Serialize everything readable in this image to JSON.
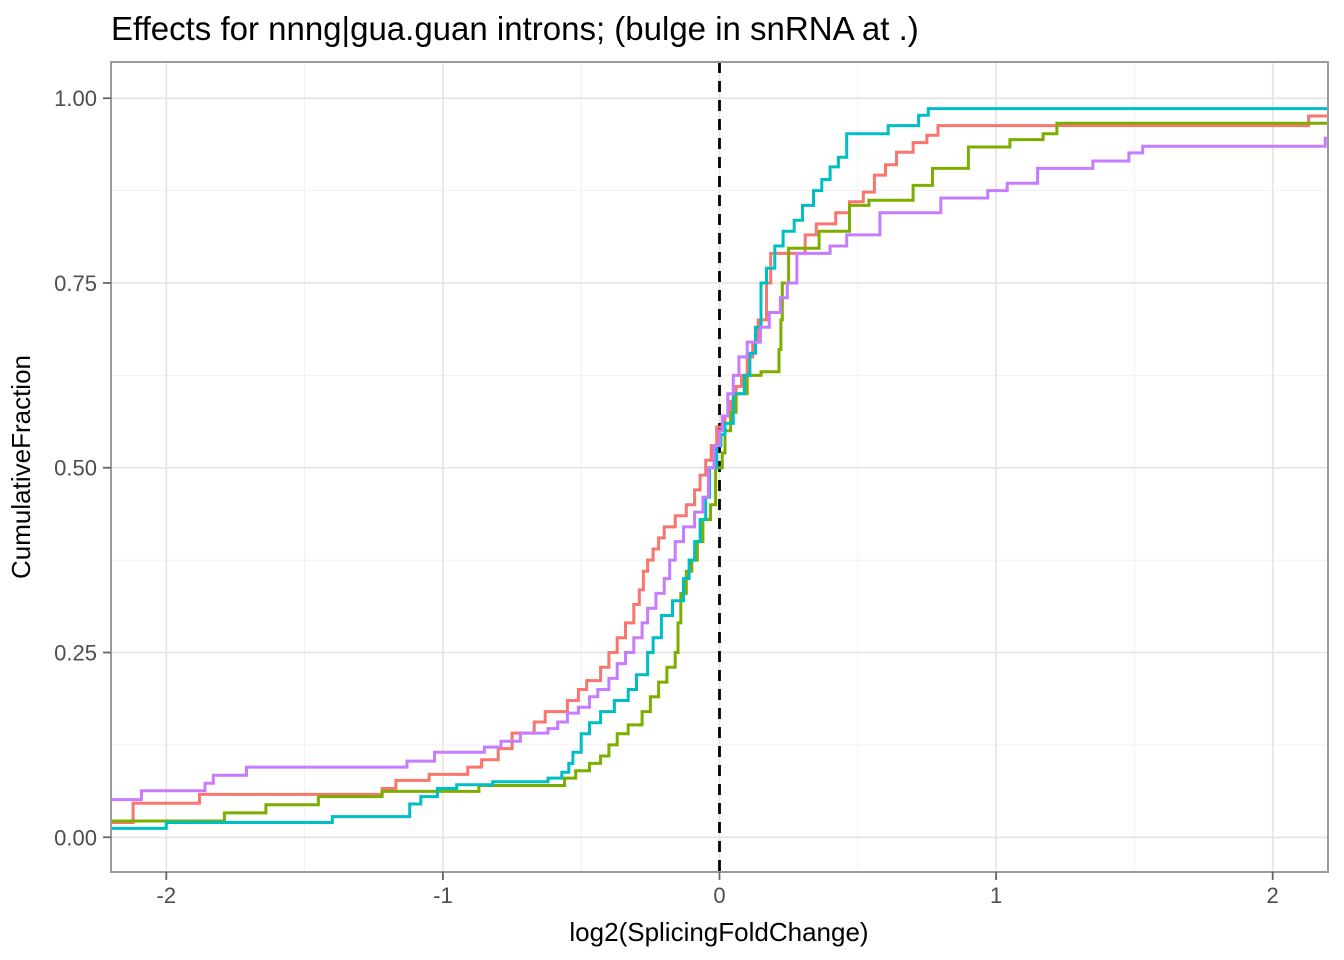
{
  "chart_data": {
    "type": "line",
    "subtype": "ecdf-step",
    "title": "Effects for nnng|gua.guan introns; (bulge in snRNA at .)",
    "xlabel": "log2(SplicingFoldChange)",
    "ylabel": "CumulativeFraction",
    "xlim": [
      -2.2,
      2.2
    ],
    "ylim": [
      -0.047,
      1.049
    ],
    "grid": true,
    "legend_position": "none",
    "x_major_ticks": [
      -2,
      -1,
      0,
      1,
      2
    ],
    "x_tick_labels": [
      "-2",
      "-1",
      "0",
      "1",
      "2"
    ],
    "x_minor_ticks": [
      -1.5,
      -0.5,
      0.5,
      1.5
    ],
    "y_major_ticks": [
      0,
      0.25,
      0.5,
      0.75,
      1
    ],
    "y_tick_labels": [
      "0.00",
      "0.25",
      "0.50",
      "0.75",
      "1.00"
    ],
    "y_minor_ticks": [
      0.125,
      0.375,
      0.625,
      0.875
    ],
    "reference_line": {
      "x": 0,
      "style": "dashed",
      "color": "#000000"
    },
    "style": {
      "panel_background": "#FFFFFF",
      "panel_border": "#9B9B9B",
      "grid_major": "#E4E4E4",
      "grid_minor": "#F1F1F1",
      "tick_color": "#666666",
      "tick_text_color": "#4D4D4D"
    },
    "series": [
      {
        "name": "red-curve",
        "color": "#F8766D",
        "steps": [
          [
            -2.2,
            0.02
          ],
          [
            -2.12,
            0.046
          ],
          [
            -1.88,
            0.058
          ],
          [
            -1.22,
            0.066
          ],
          [
            -1.17,
            0.077
          ],
          [
            -1.05,
            0.085
          ],
          [
            -0.91,
            0.095
          ],
          [
            -0.86,
            0.105
          ],
          [
            -0.8,
            0.12
          ],
          [
            -0.75,
            0.141
          ],
          [
            -0.67,
            0.156
          ],
          [
            -0.63,
            0.17
          ],
          [
            -0.55,
            0.185
          ],
          [
            -0.51,
            0.2
          ],
          [
            -0.48,
            0.212
          ],
          [
            -0.43,
            0.23
          ],
          [
            -0.4,
            0.25
          ],
          [
            -0.37,
            0.27
          ],
          [
            -0.34,
            0.29
          ],
          [
            -0.31,
            0.315
          ],
          [
            -0.29,
            0.335
          ],
          [
            -0.275,
            0.36
          ],
          [
            -0.26,
            0.375
          ],
          [
            -0.24,
            0.39
          ],
          [
            -0.22,
            0.405
          ],
          [
            -0.2,
            0.42
          ],
          [
            -0.16,
            0.435
          ],
          [
            -0.12,
            0.45
          ],
          [
            -0.09,
            0.47
          ],
          [
            -0.07,
            0.49
          ],
          [
            -0.05,
            0.51
          ],
          [
            -0.03,
            0.53
          ],
          [
            -0.01,
            0.555
          ],
          [
            0.02,
            0.57
          ],
          [
            0.04,
            0.59
          ],
          [
            0.06,
            0.61
          ],
          [
            0.08,
            0.625
          ],
          [
            0.1,
            0.65
          ],
          [
            0.12,
            0.67
          ],
          [
            0.14,
            0.7
          ],
          [
            0.17,
            0.75
          ],
          [
            0.185,
            0.79
          ],
          [
            0.31,
            0.815
          ],
          [
            0.35,
            0.83
          ],
          [
            0.42,
            0.845
          ],
          [
            0.47,
            0.86
          ],
          [
            0.52,
            0.873
          ],
          [
            0.56,
            0.896
          ],
          [
            0.6,
            0.91
          ],
          [
            0.64,
            0.927
          ],
          [
            0.7,
            0.94
          ],
          [
            0.75,
            0.95
          ],
          [
            0.79,
            0.963
          ],
          [
            2.13,
            0.976
          ]
        ]
      },
      {
        "name": "green-curve",
        "color": "#7CAE00",
        "steps": [
          [
            -2.2,
            0.022
          ],
          [
            -1.79,
            0.033
          ],
          [
            -1.64,
            0.044
          ],
          [
            -1.45,
            0.055
          ],
          [
            -1.22,
            0.062
          ],
          [
            -0.87,
            0.07
          ],
          [
            -0.56,
            0.08
          ],
          [
            -0.52,
            0.09
          ],
          [
            -0.47,
            0.1
          ],
          [
            -0.43,
            0.11
          ],
          [
            -0.4,
            0.125
          ],
          [
            -0.37,
            0.14
          ],
          [
            -0.33,
            0.152
          ],
          [
            -0.28,
            0.17
          ],
          [
            -0.25,
            0.19
          ],
          [
            -0.22,
            0.21
          ],
          [
            -0.19,
            0.23
          ],
          [
            -0.16,
            0.25
          ],
          [
            -0.15,
            0.29
          ],
          [
            -0.14,
            0.33
          ],
          [
            -0.12,
            0.36
          ],
          [
            -0.1,
            0.375
          ],
          [
            -0.08,
            0.4
          ],
          [
            -0.06,
            0.43
          ],
          [
            -0.032,
            0.45
          ],
          [
            -0.014,
            0.5
          ],
          [
            0.01,
            0.52
          ],
          [
            0.02,
            0.55
          ],
          [
            0.04,
            0.575
          ],
          [
            0.06,
            0.6
          ],
          [
            0.1,
            0.625
          ],
          [
            0.15,
            0.63
          ],
          [
            0.215,
            0.66
          ],
          [
            0.222,
            0.7
          ],
          [
            0.227,
            0.75
          ],
          [
            0.25,
            0.797
          ],
          [
            0.36,
            0.82
          ],
          [
            0.47,
            0.855
          ],
          [
            0.54,
            0.862
          ],
          [
            0.7,
            0.882
          ],
          [
            0.77,
            0.905
          ],
          [
            0.9,
            0.934
          ],
          [
            1.05,
            0.944
          ],
          [
            1.17,
            0.952
          ],
          [
            1.22,
            0.966
          ]
        ]
      },
      {
        "name": "teal-curve",
        "color": "#00BFC4",
        "steps": [
          [
            -2.2,
            0.012
          ],
          [
            -2.0,
            0.02
          ],
          [
            -1.4,
            0.028
          ],
          [
            -1.12,
            0.045
          ],
          [
            -1.08,
            0.055
          ],
          [
            -1.02,
            0.066
          ],
          [
            -0.95,
            0.071
          ],
          [
            -0.82,
            0.075
          ],
          [
            -0.62,
            0.08
          ],
          [
            -0.57,
            0.088
          ],
          [
            -0.545,
            0.1
          ],
          [
            -0.53,
            0.115
          ],
          [
            -0.5,
            0.14
          ],
          [
            -0.47,
            0.155
          ],
          [
            -0.43,
            0.17
          ],
          [
            -0.38,
            0.185
          ],
          [
            -0.33,
            0.2
          ],
          [
            -0.3,
            0.22
          ],
          [
            -0.26,
            0.25
          ],
          [
            -0.24,
            0.27
          ],
          [
            -0.21,
            0.3
          ],
          [
            -0.17,
            0.32
          ],
          [
            -0.13,
            0.35
          ],
          [
            -0.11,
            0.375
          ],
          [
            -0.09,
            0.4
          ],
          [
            -0.07,
            0.43
          ],
          [
            -0.05,
            0.46
          ],
          [
            -0.036,
            0.5
          ],
          [
            -0.01,
            0.53
          ],
          [
            0.005,
            0.545
          ],
          [
            0.02,
            0.56
          ],
          [
            0.05,
            0.6
          ],
          [
            0.09,
            0.625
          ],
          [
            0.11,
            0.655
          ],
          [
            0.13,
            0.69
          ],
          [
            0.15,
            0.75
          ],
          [
            0.17,
            0.77
          ],
          [
            0.2,
            0.8
          ],
          [
            0.23,
            0.82
          ],
          [
            0.27,
            0.835
          ],
          [
            0.3,
            0.855
          ],
          [
            0.34,
            0.875
          ],
          [
            0.37,
            0.89
          ],
          [
            0.4,
            0.907
          ],
          [
            0.43,
            0.92
          ],
          [
            0.46,
            0.952
          ],
          [
            0.61,
            0.963
          ],
          [
            0.72,
            0.977
          ],
          [
            0.755,
            0.986
          ]
        ]
      },
      {
        "name": "purple-curve",
        "color": "#C77CFF",
        "steps": [
          [
            -2.2,
            0.051
          ],
          [
            -2.09,
            0.063
          ],
          [
            -1.86,
            0.073
          ],
          [
            -1.83,
            0.084
          ],
          [
            -1.71,
            0.095
          ],
          [
            -1.13,
            0.103
          ],
          [
            -1.03,
            0.115
          ],
          [
            -0.85,
            0.122
          ],
          [
            -0.79,
            0.13
          ],
          [
            -0.72,
            0.141
          ],
          [
            -0.62,
            0.147
          ],
          [
            -0.585,
            0.156
          ],
          [
            -0.55,
            0.168
          ],
          [
            -0.51,
            0.176
          ],
          [
            -0.47,
            0.19
          ],
          [
            -0.44,
            0.2
          ],
          [
            -0.4,
            0.215
          ],
          [
            -0.37,
            0.235
          ],
          [
            -0.34,
            0.25
          ],
          [
            -0.31,
            0.27
          ],
          [
            -0.28,
            0.29
          ],
          [
            -0.26,
            0.31
          ],
          [
            -0.23,
            0.33
          ],
          [
            -0.2,
            0.35
          ],
          [
            -0.18,
            0.375
          ],
          [
            -0.16,
            0.4
          ],
          [
            -0.13,
            0.42
          ],
          [
            -0.09,
            0.44
          ],
          [
            -0.06,
            0.46
          ],
          [
            -0.04,
            0.5
          ],
          [
            -0.02,
            0.53
          ],
          [
            0.0,
            0.55
          ],
          [
            0.01,
            0.57
          ],
          [
            0.03,
            0.6
          ],
          [
            0.05,
            0.625
          ],
          [
            0.07,
            0.65
          ],
          [
            0.1,
            0.67
          ],
          [
            0.148,
            0.69
          ],
          [
            0.18,
            0.71
          ],
          [
            0.22,
            0.73
          ],
          [
            0.245,
            0.75
          ],
          [
            0.28,
            0.79
          ],
          [
            0.4,
            0.8
          ],
          [
            0.46,
            0.815
          ],
          [
            0.58,
            0.845
          ],
          [
            0.8,
            0.865
          ],
          [
            0.97,
            0.875
          ],
          [
            1.04,
            0.885
          ],
          [
            1.15,
            0.905
          ],
          [
            1.35,
            0.915
          ],
          [
            1.48,
            0.926
          ],
          [
            1.53,
            0.935
          ],
          [
            2.19,
            0.946
          ]
        ]
      }
    ]
  }
}
